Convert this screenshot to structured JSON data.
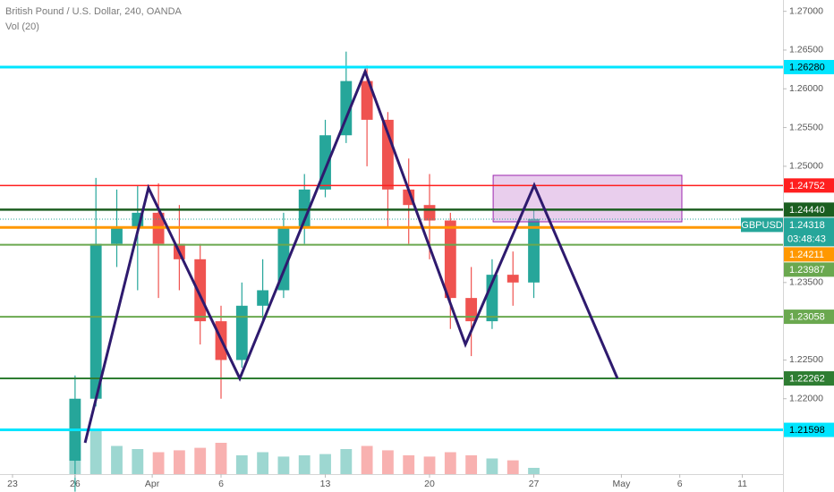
{
  "chart_data": {
    "type": "candlestick",
    "title": "British Pound / U.S. Dollar, 240, OANDA",
    "subtitle": "Vol (20)",
    "xlim": [
      -0.6,
      36.95
    ],
    "ylim": [
      1.21027,
      1.27146
    ],
    "vlim": [
      0,
      100
    ],
    "grid": false,
    "up_color": "#26a69a",
    "down_color": "#ef5350",
    "xticks": [
      {
        "value": 0,
        "label": "23"
      },
      {
        "value": 3,
        "label": "26"
      },
      {
        "value": 6.7,
        "label": "Apr"
      },
      {
        "value": 10,
        "label": "6"
      },
      {
        "value": 15,
        "label": "13"
      },
      {
        "value": 20,
        "label": "20"
      },
      {
        "value": 25,
        "label": "27"
      },
      {
        "value": 29.2,
        "label": "May"
      },
      {
        "value": 32,
        "label": "6"
      },
      {
        "value": 35,
        "label": "11"
      }
    ],
    "yticks": [
      {
        "value": 1.27,
        "label": "1.27000"
      },
      {
        "value": 1.265,
        "label": "1.26500"
      },
      {
        "value": 1.26,
        "label": "1.26000"
      },
      {
        "value": 1.255,
        "label": "1.25500"
      },
      {
        "value": 1.25,
        "label": "1.25000"
      },
      {
        "value": 1.235,
        "label": "1.23500"
      },
      {
        "value": 1.225,
        "label": "1.22500"
      },
      {
        "value": 1.22,
        "label": "1.22000"
      }
    ],
    "x": [
      3,
      4,
      5,
      6,
      7,
      8,
      9,
      10,
      11,
      12,
      13,
      14,
      15,
      16,
      17,
      18,
      19,
      20,
      21,
      22,
      23,
      24,
      25
    ],
    "open": [
      1.212,
      1.22,
      1.24,
      1.242,
      1.244,
      1.24,
      1.238,
      1.23,
      1.225,
      1.232,
      1.234,
      1.242,
      1.247,
      1.254,
      1.261,
      1.256,
      1.247,
      1.245,
      1.243,
      1.233,
      1.23,
      1.236,
      1.235
    ],
    "high": [
      1.223,
      1.2485,
      1.247,
      1.2475,
      1.2478,
      1.245,
      1.24,
      1.232,
      1.235,
      1.238,
      1.244,
      1.249,
      1.256,
      1.2648,
      1.263,
      1.257,
      1.251,
      1.249,
      1.244,
      1.237,
      1.238,
      1.239,
      1.2445
    ],
    "low": [
      1.208,
      1.219,
      1.237,
      1.234,
      1.233,
      1.234,
      1.227,
      1.22,
      1.224,
      1.23,
      1.233,
      1.24,
      1.246,
      1.253,
      1.25,
      1.242,
      1.24,
      1.238,
      1.229,
      1.2255,
      1.229,
      1.232,
      1.233
    ],
    "close": [
      1.22,
      1.24,
      1.242,
      1.244,
      1.24,
      1.238,
      1.23,
      1.225,
      1.232,
      1.234,
      1.242,
      1.247,
      1.254,
      1.261,
      1.256,
      1.247,
      1.245,
      1.243,
      1.233,
      1.23,
      1.236,
      1.235,
      1.2432
    ],
    "volume": [
      60,
      70,
      45,
      40,
      35,
      38,
      42,
      50,
      30,
      35,
      28,
      30,
      32,
      40,
      45,
      38,
      30,
      28,
      35,
      30,
      25,
      22,
      10
    ],
    "pattern": {
      "color": "#2e1a6e",
      "x": [
        3.48,
        6.52,
        10.9,
        16.91,
        21.72,
        25.02,
        29.01
      ],
      "y": [
        1.21431,
        1.24721,
        1.22262,
        1.26222,
        1.22701,
        1.24756,
        1.22262
      ]
    },
    "zone": {
      "color": "#ce93d8",
      "x": [
        23.05,
        32.1
      ],
      "y": [
        1.24283,
        1.24883
      ]
    },
    "levels": [
      {
        "value": 1.2628,
        "label": "1.26280",
        "color": "#00e5ff"
      },
      {
        "value": 1.24752,
        "label": "1.24752",
        "color": "#ff1f1f"
      },
      {
        "value": 1.2444,
        "label": "1.24440",
        "color": "#1b5e20"
      },
      {
        "value": 1.24211,
        "label": "1.24211",
        "color": "#ff9800"
      },
      {
        "value": 1.23987,
        "label": "1.23987",
        "color": "#6aa84f"
      },
      {
        "value": 1.23058,
        "label": "1.23058",
        "color": "#6aa84f"
      },
      {
        "value": 1.22262,
        "label": "1.22262",
        "color": "#2e7d32"
      },
      {
        "value": 1.21598,
        "label": "1.21598",
        "color": "#00e5ff"
      }
    ],
    "current": {
      "symbol": "GBPUSD",
      "value": 1.24318,
      "label": "1.24318",
      "countdown": "03:48:43",
      "color": "#26a69a"
    }
  }
}
